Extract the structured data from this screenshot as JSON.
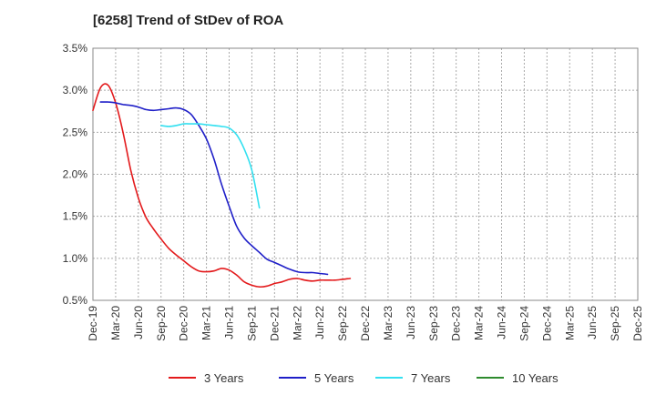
{
  "chart_data": {
    "type": "line",
    "title": "[6258]  Trend of StDev of ROA",
    "xlabel": "",
    "ylabel": "",
    "x_ticks": [
      "Dec-19",
      "Mar-20",
      "Jun-20",
      "Sep-20",
      "Dec-20",
      "Mar-21",
      "Jun-21",
      "Sep-21",
      "Dec-21",
      "Mar-22",
      "Jun-22",
      "Sep-22",
      "Dec-22",
      "Mar-23",
      "Jun-23",
      "Sep-23",
      "Dec-23",
      "Mar-24",
      "Jun-24",
      "Sep-24",
      "Dec-24",
      "Mar-25",
      "Jun-25",
      "Sep-25",
      "Dec-25"
    ],
    "y_ticks": [
      "0.5%",
      "1.0%",
      "1.5%",
      "2.0%",
      "2.5%",
      "3.0%",
      "3.5%"
    ],
    "ylim": [
      0.5,
      3.5
    ],
    "grid": "vertical and horizontal dotted",
    "legend_position": "bottom",
    "series": [
      {
        "name": "3 Years",
        "color": "#e31a1c",
        "points": [
          [
            0,
            2.76
          ],
          [
            1,
            3.03
          ],
          [
            2,
            3.06
          ],
          [
            3,
            2.85
          ],
          [
            4,
            2.49
          ],
          [
            5,
            2.05
          ],
          [
            6,
            1.72
          ],
          [
            7,
            1.49
          ],
          [
            8,
            1.35
          ],
          [
            9,
            1.23
          ],
          [
            10,
            1.12
          ],
          [
            11,
            1.04
          ],
          [
            12,
            0.97
          ],
          [
            13,
            0.9
          ],
          [
            14,
            0.85
          ],
          [
            15,
            0.84
          ],
          [
            16,
            0.85
          ],
          [
            17,
            0.88
          ],
          [
            18,
            0.86
          ],
          [
            19,
            0.8
          ],
          [
            20,
            0.72
          ],
          [
            21,
            0.68
          ],
          [
            22,
            0.66
          ],
          [
            23,
            0.67
          ],
          [
            24,
            0.7
          ],
          [
            25,
            0.72
          ],
          [
            26,
            0.75
          ],
          [
            27,
            0.76
          ],
          [
            28,
            0.74
          ],
          [
            29,
            0.73
          ],
          [
            30,
            0.74
          ],
          [
            31,
            0.74
          ],
          [
            32,
            0.74
          ],
          [
            33,
            0.75
          ],
          [
            34,
            0.76
          ]
        ]
      },
      {
        "name": "5 Years",
        "color": "#1f1fc8",
        "points": [
          [
            1,
            2.86
          ],
          [
            2,
            2.86
          ],
          [
            3,
            2.85
          ],
          [
            4,
            2.83
          ],
          [
            5,
            2.82
          ],
          [
            6,
            2.8
          ],
          [
            7,
            2.77
          ],
          [
            8,
            2.76
          ],
          [
            9,
            2.77
          ],
          [
            10,
            2.78
          ],
          [
            11,
            2.79
          ],
          [
            12,
            2.77
          ],
          [
            13,
            2.71
          ],
          [
            14,
            2.58
          ],
          [
            15,
            2.42
          ],
          [
            16,
            2.18
          ],
          [
            17,
            1.88
          ],
          [
            18,
            1.62
          ],
          [
            19,
            1.38
          ],
          [
            20,
            1.24
          ],
          [
            21,
            1.15
          ],
          [
            22,
            1.07
          ],
          [
            23,
            0.99
          ],
          [
            24,
            0.95
          ],
          [
            25,
            0.91
          ],
          [
            26,
            0.87
          ],
          [
            27,
            0.84
          ],
          [
            28,
            0.83
          ],
          [
            29,
            0.83
          ],
          [
            30,
            0.82
          ],
          [
            31,
            0.81
          ]
        ]
      },
      {
        "name": "7 Years",
        "color": "#33e0f0",
        "points": [
          [
            9,
            2.58
          ],
          [
            10,
            2.57
          ],
          [
            11,
            2.58
          ],
          [
            12,
            2.6
          ],
          [
            13,
            2.6
          ],
          [
            14,
            2.6
          ],
          [
            15,
            2.59
          ],
          [
            16,
            2.58
          ],
          [
            17,
            2.57
          ],
          [
            18,
            2.55
          ],
          [
            19,
            2.47
          ],
          [
            20,
            2.3
          ],
          [
            21,
            2.05
          ],
          [
            22,
            1.6
          ]
        ]
      },
      {
        "name": "10 Years",
        "color": "#2e8b2e",
        "points": []
      }
    ]
  }
}
